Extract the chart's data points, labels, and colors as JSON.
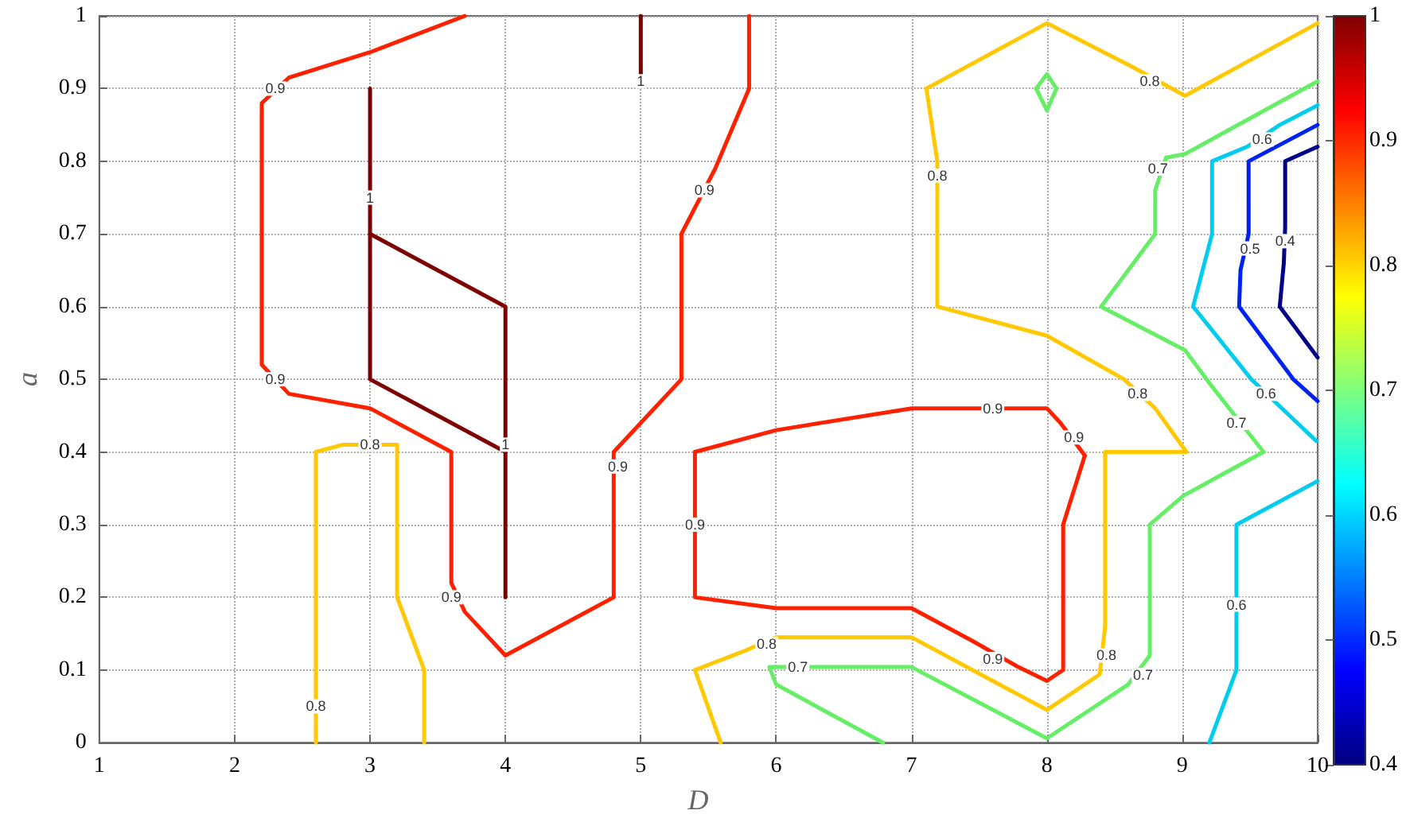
{
  "chart_data": {
    "type": "line",
    "xlabel": "D",
    "ylabel": "a",
    "xlim": [
      1,
      10
    ],
    "xticks": [
      1,
      2,
      3,
      4,
      5,
      6,
      7,
      8,
      9,
      10
    ],
    "ylim": [
      0,
      1
    ],
    "yticks": [
      0,
      0.1,
      0.2,
      0.3,
      0.4,
      0.5,
      0.6,
      0.7,
      0.8,
      0.9,
      1
    ],
    "grid": true,
    "clim": [
      0.4,
      1
    ],
    "cticks": [
      0.4,
      0.5,
      0.6,
      0.7,
      0.8,
      0.9,
      1
    ],
    "series": [
      {
        "color": "#7f0000",
        "x": [
          3,
          3,
          4,
          4
        ],
        "values": [
          0.9,
          0.5,
          0.4,
          0.2
        ]
      },
      {
        "color": "#7f0000",
        "x": [
          3,
          4,
          4
        ],
        "values": [
          0.7,
          0.6,
          0.4
        ]
      },
      {
        "color": "#7f0000",
        "x": [
          5,
          5
        ],
        "values": [
          1,
          0.91
        ]
      },
      {
        "color": "#ff2000",
        "x": [
          3.7,
          3,
          2.4,
          2.2,
          2.2,
          2.4,
          3,
          3.6,
          3.6,
          3.7,
          4,
          4.8,
          4.8,
          5.3,
          5.3,
          5.55,
          5.8,
          5.8
        ],
        "values": [
          1,
          0.95,
          0.915,
          0.88,
          0.52,
          0.48,
          0.46,
          0.4,
          0.22,
          0.18,
          0.12,
          0.2,
          0.4,
          0.5,
          0.7,
          0.79,
          0.9,
          1
        ]
      },
      {
        "color": "#ff2000",
        "x": [
          5.4,
          6,
          7,
          8,
          8.1,
          8.28
        ],
        "values": [
          0.4,
          0.43,
          0.46,
          0.46,
          0.44,
          0.395
        ]
      },
      {
        "color": "#ff2000",
        "x": [
          8.28,
          8.12,
          8.12,
          8,
          7.78,
          7.45,
          7,
          6,
          5.4,
          5.4
        ],
        "values": [
          0.395,
          0.3,
          0.1,
          0.085,
          0.105,
          0.14,
          0.185,
          0.185,
          0.2,
          0.4
        ]
      },
      {
        "color": "#ffc800",
        "x": [
          2.6,
          2.6,
          2.8,
          3.2,
          3.2,
          3.4,
          3.4
        ],
        "values": [
          0,
          0.4,
          0.41,
          0.41,
          0.2,
          0.1,
          0
        ]
      },
      {
        "color": "#ffc800",
        "x": [
          5.59,
          5.4,
          5.75,
          6,
          7,
          8,
          8.39,
          8.43,
          8.43,
          9.03,
          8.8,
          8.57,
          8,
          7.19,
          7.19,
          7.11,
          8,
          8.63,
          9.02,
          10
        ],
        "values": [
          0,
          0.1,
          0.125,
          0.145,
          0.145,
          0.045,
          0.094,
          0.16,
          0.4,
          0.4,
          0.46,
          0.5,
          0.56,
          0.6,
          0.8,
          0.9,
          0.99,
          0.93,
          0.89,
          0.99
        ]
      },
      {
        "color": "#66ee66",
        "x": [
          7.92,
          8,
          8.07
        ],
        "values": [
          0.9,
          0.92,
          0.9
        ]
      },
      {
        "color": "#66ee66",
        "x": [
          8.07,
          8,
          7.92
        ],
        "values": [
          0.9,
          0.87,
          0.9
        ]
      },
      {
        "color": "#66ee66",
        "x": [
          6.79,
          6,
          5.95,
          7,
          8,
          8.6,
          8.76,
          8.76,
          9.01,
          9.6
        ],
        "values": [
          0,
          0.08,
          0.104,
          0.104,
          0.006,
          0.08,
          0.12,
          0.3,
          0.34,
          0.4
        ]
      },
      {
        "color": "#66ee66",
        "x": [
          9.6,
          9.22,
          9.02,
          8.4,
          8.8,
          8.8,
          8.88,
          9.02,
          10
        ],
        "values": [
          0.4,
          0.49,
          0.54,
          0.6,
          0.7,
          0.76,
          0.805,
          0.81,
          0.91
        ]
      },
      {
        "color": "#00ccee",
        "x": [
          9.2,
          9.4,
          9.4,
          10
        ],
        "values": [
          0,
          0.1,
          0.3,
          0.36
        ]
      },
      {
        "color": "#00ccee",
        "x": [
          10,
          9.72,
          9.48,
          9.22,
          9.22,
          9.08,
          9.51,
          9.99
        ],
        "values": [
          0.877,
          0.85,
          0.82,
          0.8,
          0.7,
          0.6,
          0.5,
          0.415
        ]
      },
      {
        "color": "#0022ee",
        "x": [
          10,
          9.49,
          9.49,
          9.43,
          9.42,
          9.82,
          10
        ],
        "values": [
          0.85,
          0.8,
          0.7,
          0.65,
          0.6,
          0.5,
          0.47
        ]
      },
      {
        "color": "#000088",
        "x": [
          10,
          9.76,
          9.76,
          9.75,
          9.72,
          10
        ],
        "values": [
          0.82,
          0.8,
          0.71,
          0.66,
          0.6,
          0.53
        ]
      }
    ],
    "annotations": [
      {
        "text": "1",
        "x": 3,
        "y": 0.75
      },
      {
        "text": "1",
        "x": 4,
        "y": 0.41
      },
      {
        "text": "1",
        "x": 5,
        "y": 0.91
      },
      {
        "text": "0.9",
        "x": 2.3,
        "y": 0.9
      },
      {
        "text": "0.9",
        "x": 2.3,
        "y": 0.5
      },
      {
        "text": "0.9",
        "x": 3.6,
        "y": 0.2
      },
      {
        "text": "0.9",
        "x": 4.83,
        "y": 0.38
      },
      {
        "text": "0.9",
        "x": 5.47,
        "y": 0.76
      },
      {
        "text": "0.9",
        "x": 5.4,
        "y": 0.3
      },
      {
        "text": "0.9",
        "x": 7.6,
        "y": 0.46
      },
      {
        "text": "0.9",
        "x": 8.2,
        "y": 0.42
      },
      {
        "text": "0.9",
        "x": 7.6,
        "y": 0.115
      },
      {
        "text": "0.8",
        "x": 3,
        "y": 0.41
      },
      {
        "text": "0.8",
        "x": 2.6,
        "y": 0.05
      },
      {
        "text": "0.8",
        "x": 5.93,
        "y": 0.136
      },
      {
        "text": "0.8",
        "x": 8.44,
        "y": 0.12
      },
      {
        "text": "0.8",
        "x": 8.67,
        "y": 0.48
      },
      {
        "text": "0.8",
        "x": 7.19,
        "y": 0.78
      },
      {
        "text": "0.8",
        "x": 8.76,
        "y": 0.91
      },
      {
        "text": "0.7",
        "x": 6.16,
        "y": 0.104
      },
      {
        "text": "0.7",
        "x": 8.71,
        "y": 0.093
      },
      {
        "text": "0.7",
        "x": 9.4,
        "y": 0.44
      },
      {
        "text": "0.7",
        "x": 8.82,
        "y": 0.79
      },
      {
        "text": "0.6",
        "x": 9.4,
        "y": 0.19
      },
      {
        "text": "0.6",
        "x": 9.59,
        "y": 0.83
      },
      {
        "text": "0.6",
        "x": 9.62,
        "y": 0.48
      },
      {
        "text": "0.5",
        "x": 9.5,
        "y": 0.68
      },
      {
        "text": "0.4",
        "x": 9.76,
        "y": 0.69
      }
    ]
  }
}
